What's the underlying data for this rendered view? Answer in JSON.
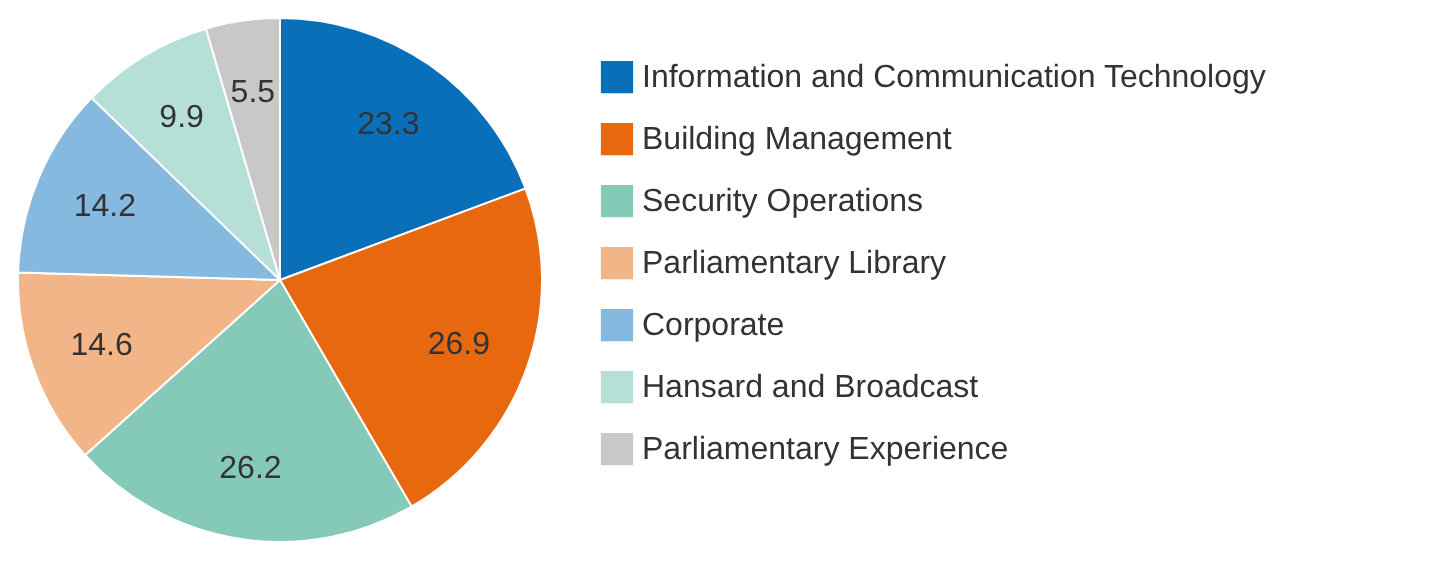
{
  "chart_data": {
    "type": "pie",
    "categories": [
      "Information and Communication Technology",
      "Building Management",
      "Security Operations",
      "Parliamentary Library",
      "Corporate",
      "Hansard and Broadcast",
      "Parliamentary Experience"
    ],
    "values": [
      23.3,
      26.9,
      26.2,
      14.6,
      14.2,
      9.9,
      5.5
    ],
    "colors": [
      "#0a6fb9",
      "#e8680f",
      "#85c9b9",
      "#f2b587",
      "#85b9df",
      "#b6e0d7",
      "#c8c8c8"
    ],
    "data_labels": true,
    "legend": "right"
  }
}
